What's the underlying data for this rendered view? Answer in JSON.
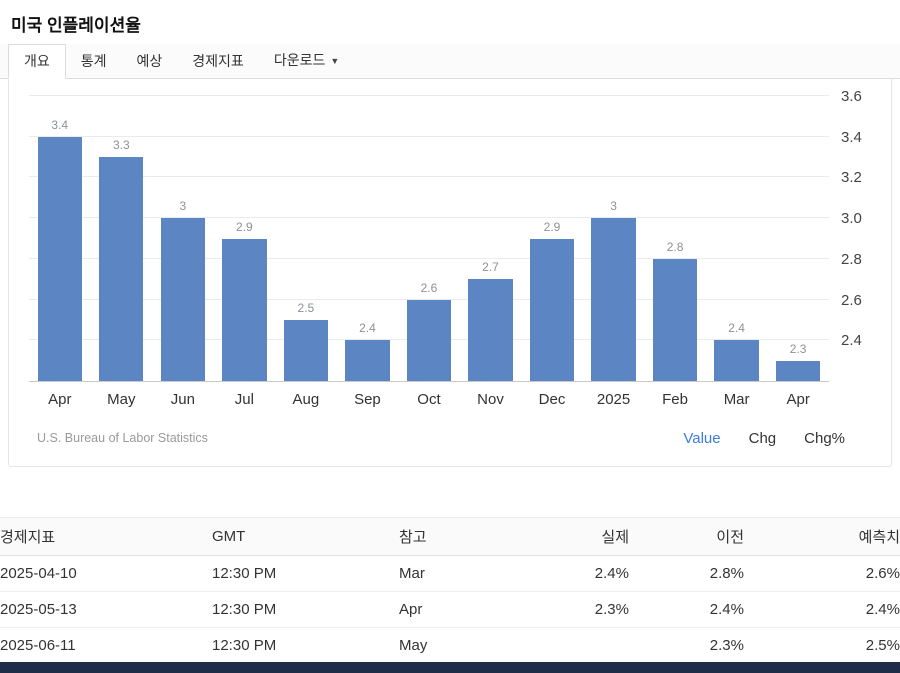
{
  "header": {
    "title": "미국 인플레이션율"
  },
  "tabs": {
    "items": [
      {
        "label": "개요",
        "active": true
      },
      {
        "label": "통계",
        "active": false
      },
      {
        "label": "예상",
        "active": false
      },
      {
        "label": "경제지표",
        "active": false
      },
      {
        "label": "다운로드",
        "active": false,
        "has_caret": true
      }
    ]
  },
  "chart_data": {
    "type": "bar",
    "title": "미국 인플레이션율",
    "categories": [
      "Apr",
      "May",
      "Jun",
      "Jul",
      "Aug",
      "Sep",
      "Oct",
      "Nov",
      "Dec",
      "2025",
      "Feb",
      "Mar",
      "Apr"
    ],
    "values": [
      3.4,
      3.3,
      3,
      2.9,
      2.5,
      2.4,
      2.6,
      2.7,
      2.9,
      3,
      2.8,
      2.4,
      2.3
    ],
    "ylim": [
      2.2,
      3.6
    ],
    "yticks": [
      "3.6",
      "3.4",
      "3.2",
      "3.0",
      "2.8",
      "2.6",
      "2.4"
    ],
    "grid": true,
    "legend_position": "none",
    "xlabel": "",
    "ylabel": ""
  },
  "chart_footer": {
    "source": "U.S. Bureau of Labor Statistics",
    "toggles": [
      {
        "label": "Value",
        "active": true
      },
      {
        "label": "Chg",
        "active": false
      },
      {
        "label": "Chg%",
        "active": false
      }
    ]
  },
  "table": {
    "headers": [
      "경제지표",
      "GMT",
      "참고",
      "실제",
      "이전",
      "예측치"
    ],
    "rows": [
      [
        "2025-04-10",
        "12:30 PM",
        "Mar",
        "2.4%",
        "2.8%",
        "2.6%"
      ],
      [
        "2025-05-13",
        "12:30 PM",
        "Apr",
        "2.3%",
        "2.4%",
        "2.4%"
      ],
      [
        "2025-06-11",
        "12:30 PM",
        "May",
        "",
        "2.3%",
        "2.5%"
      ]
    ]
  },
  "colors": {
    "bar": "#5b86c3",
    "accent": "#3b7dd8",
    "footer_bar": "#1f2d4a"
  }
}
